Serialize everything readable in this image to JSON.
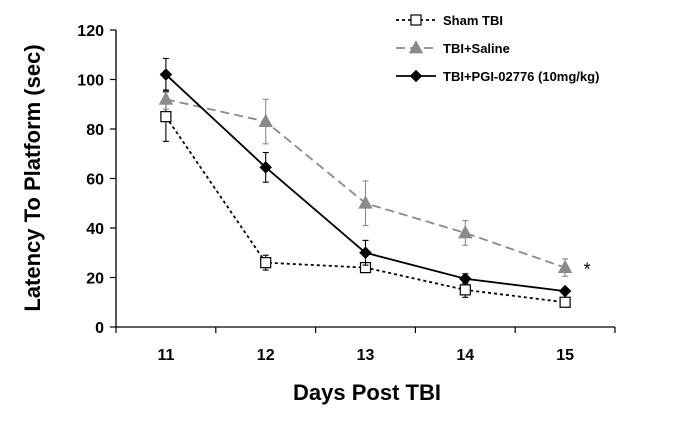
{
  "chart_data": {
    "type": "line",
    "title": "",
    "xlabel": "Days Post TBI",
    "ylabel": "Latency To Platform (sec)",
    "x": [
      11,
      12,
      13,
      14,
      15
    ],
    "x_ticks": [
      "11",
      "12",
      "13",
      "14",
      "15"
    ],
    "ylim": [
      0,
      120
    ],
    "y_ticks": [
      0,
      20,
      40,
      60,
      80,
      100,
      120
    ],
    "grid": false,
    "legend_placement": "top-right",
    "series": [
      {
        "name": "Sham TBI",
        "values": [
          85,
          26,
          24,
          15,
          10
        ],
        "error": [
          10,
          3,
          2,
          3,
          1.5
        ],
        "color": "#000000",
        "line_style": "dotted",
        "marker": "open-square"
      },
      {
        "name": "TBI+Saline",
        "values": [
          92,
          83,
          50,
          38,
          24
        ],
        "error": [
          4,
          9,
          9,
          5,
          3.5
        ],
        "color": "#8a8a8a",
        "line_style": "dashed",
        "marker": "filled-triangle"
      },
      {
        "name": "TBI+PGI-02776 (10mg/kg)",
        "values": [
          102,
          64.5,
          30,
          19.5,
          14.5
        ],
        "error": [
          6.5,
          6,
          5,
          2,
          1
        ],
        "color": "#000000",
        "line_style": "solid",
        "marker": "filled-diamond"
      }
    ],
    "annotations": [
      {
        "text": "*",
        "x": 15,
        "y": 24
      }
    ]
  }
}
